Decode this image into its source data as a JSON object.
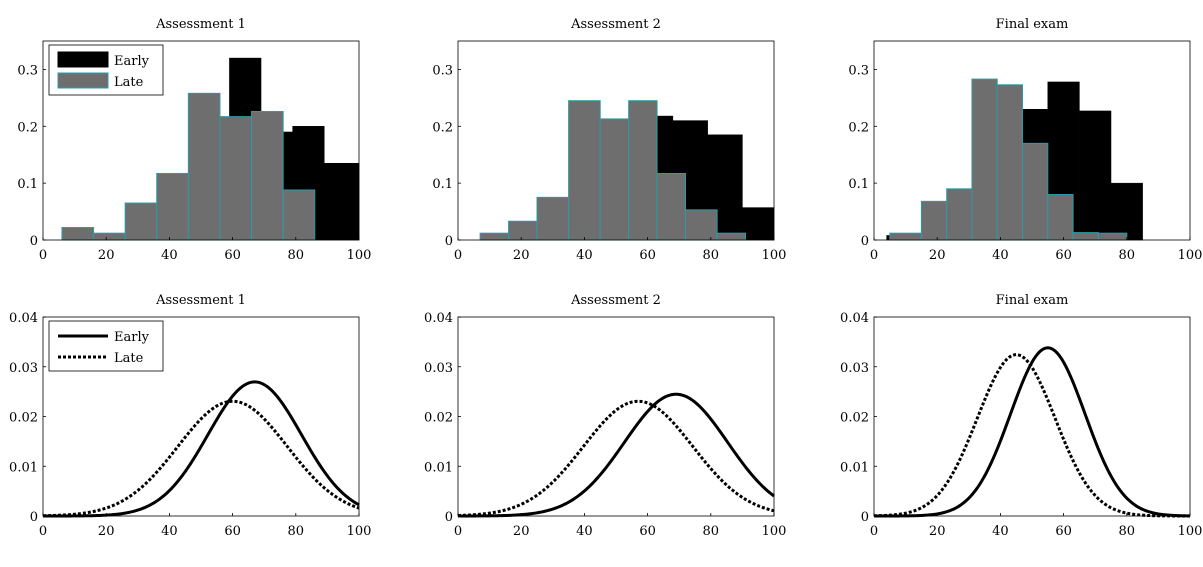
{
  "colors": {
    "early": "#000000",
    "late": "#6e6e6e",
    "late_edge": "#2e9aa5",
    "axis": "#000000",
    "background": "#ffffff"
  },
  "chart_data": [
    {
      "type": "bar",
      "title": "Assessment 1",
      "xlabel": "",
      "ylabel": "",
      "xlim": [
        0,
        100
      ],
      "ylim": [
        0,
        0.35
      ],
      "xticks": [
        0,
        20,
        40,
        60,
        80,
        100
      ],
      "yticks": [
        0,
        0.1,
        0.2,
        0.3
      ],
      "grid": false,
      "legend": "top-left",
      "series": [
        {
          "name": "Early",
          "bin_edges": [
            49,
            59,
            69,
            79,
            89,
            100
          ],
          "values": [
            0.19,
            0.32,
            0.19,
            0.2,
            0.135
          ]
        },
        {
          "name": "Late",
          "bin_edges": [
            6,
            16,
            26,
            36,
            46,
            56,
            66,
            76,
            86,
            96
          ],
          "values": [
            0.022,
            0.012,
            0.065,
            0.117,
            0.258,
            0.217,
            0.226,
            0.088,
            0.0
          ]
        }
      ]
    },
    {
      "type": "bar",
      "title": "Assessment 2",
      "xlabel": "",
      "ylabel": "",
      "xlim": [
        0,
        100
      ],
      "ylim": [
        0,
        0.35
      ],
      "xticks": [
        0,
        20,
        40,
        60,
        80,
        100
      ],
      "yticks": [
        0,
        0.1,
        0.2,
        0.3
      ],
      "grid": false,
      "legend": "none",
      "series": [
        {
          "name": "Early",
          "bin_edges": [
            48,
            58,
            68,
            79,
            90,
            100
          ],
          "values": [
            0.193,
            0.218,
            0.21,
            0.185,
            0.057
          ]
        },
        {
          "name": "Late",
          "bin_edges": [
            7,
            16,
            25,
            35,
            45,
            54,
            63,
            72,
            82,
            91,
            100
          ],
          "values": [
            0.012,
            0.033,
            0.075,
            0.245,
            0.213,
            0.245,
            0.117,
            0.053,
            0.012,
            0.0
          ]
        }
      ]
    },
    {
      "type": "bar",
      "title": "Final exam",
      "xlabel": "",
      "ylabel": "",
      "xlim": [
        0,
        100
      ],
      "ylim": [
        0,
        0.35
      ],
      "xticks": [
        0,
        20,
        40,
        60,
        80,
        100
      ],
      "yticks": [
        0,
        0.1,
        0.2,
        0.3
      ],
      "grid": false,
      "legend": "none",
      "series": [
        {
          "name": "Early",
          "bin_edges": [
            4,
            45,
            55,
            65,
            75,
            85
          ],
          "values": [
            0.008,
            0.23,
            0.278,
            0.227,
            0.1
          ]
        },
        {
          "name": "Late",
          "bin_edges": [
            5,
            15,
            23,
            31,
            39,
            47,
            55,
            63,
            71,
            80,
            88,
            96
          ],
          "values": [
            0.012,
            0.068,
            0.09,
            0.283,
            0.273,
            0.17,
            0.08,
            0.013,
            0.012,
            0.0,
            0.0
          ]
        }
      ]
    },
    {
      "type": "line",
      "title": "Assessment 1",
      "xlabel": "",
      "ylabel": "",
      "xlim": [
        0,
        100
      ],
      "ylim": [
        0,
        0.04
      ],
      "xticks": [
        0,
        20,
        40,
        60,
        80,
        100
      ],
      "yticks": [
        0,
        0.01,
        0.02,
        0.03,
        0.04
      ],
      "grid": false,
      "legend": "top-left",
      "series": [
        {
          "name": "Early",
          "style": "solid",
          "distribution": "normal",
          "mean": 67,
          "sd": 14.8
        },
        {
          "name": "Late",
          "style": "dotted",
          "distribution": "normal",
          "mean": 60,
          "sd": 17.3
        }
      ]
    },
    {
      "type": "line",
      "title": "Assessment 2",
      "xlabel": "",
      "ylabel": "",
      "xlim": [
        0,
        100
      ],
      "ylim": [
        0,
        0.04
      ],
      "xticks": [
        0,
        20,
        40,
        60,
        80,
        100
      ],
      "yticks": [
        0,
        0.01,
        0.02,
        0.03,
        0.04
      ],
      "grid": false,
      "legend": "none",
      "series": [
        {
          "name": "Early",
          "style": "solid",
          "distribution": "normal",
          "mean": 69,
          "sd": 16.3
        },
        {
          "name": "Late",
          "style": "dotted",
          "distribution": "normal",
          "mean": 57,
          "sd": 17.3
        }
      ]
    },
    {
      "type": "line",
      "title": "Final exam",
      "xlabel": "",
      "ylabel": "",
      "xlim": [
        0,
        100
      ],
      "ylim": [
        0,
        0.04
      ],
      "xticks": [
        0,
        20,
        40,
        60,
        80,
        100
      ],
      "yticks": [
        0,
        0.01,
        0.02,
        0.03,
        0.04
      ],
      "grid": false,
      "legend": "none",
      "series": [
        {
          "name": "Early",
          "style": "solid",
          "distribution": "normal",
          "mean": 55,
          "sd": 11.8
        },
        {
          "name": "Late",
          "style": "dotted",
          "distribution": "normal",
          "mean": 45,
          "sd": 12.3
        }
      ]
    }
  ]
}
